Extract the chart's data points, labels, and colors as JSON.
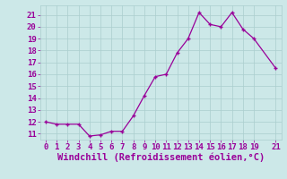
{
  "x": [
    0,
    1,
    2,
    3,
    4,
    5,
    6,
    7,
    8,
    9,
    10,
    11,
    12,
    13,
    14,
    15,
    16,
    17,
    18,
    19,
    21
  ],
  "y": [
    12.0,
    11.8,
    11.8,
    11.8,
    10.8,
    10.9,
    11.2,
    11.2,
    12.5,
    14.2,
    15.8,
    16.0,
    17.8,
    19.0,
    21.2,
    20.2,
    20.0,
    21.2,
    19.8,
    19.0,
    16.5
  ],
  "line_color": "#990099",
  "marker": "+",
  "marker_color": "#990099",
  "bg_color": "#cce8e8",
  "grid_color": "#aacece",
  "xlabel": "Windchill (Refroidissement éolien,°C)",
  "xlabel_color": "#990099",
  "tick_color": "#990099",
  "ylim": [
    10.5,
    21.8
  ],
  "xlim": [
    -0.5,
    21.5
  ],
  "yticks": [
    11,
    12,
    13,
    14,
    15,
    16,
    17,
    18,
    19,
    20,
    21
  ],
  "xticks": [
    0,
    1,
    2,
    3,
    4,
    5,
    6,
    7,
    8,
    9,
    10,
    11,
    12,
    13,
    14,
    15,
    16,
    17,
    18,
    19,
    21
  ],
  "font_size": 6.5,
  "xlabel_fontsize": 7.5
}
